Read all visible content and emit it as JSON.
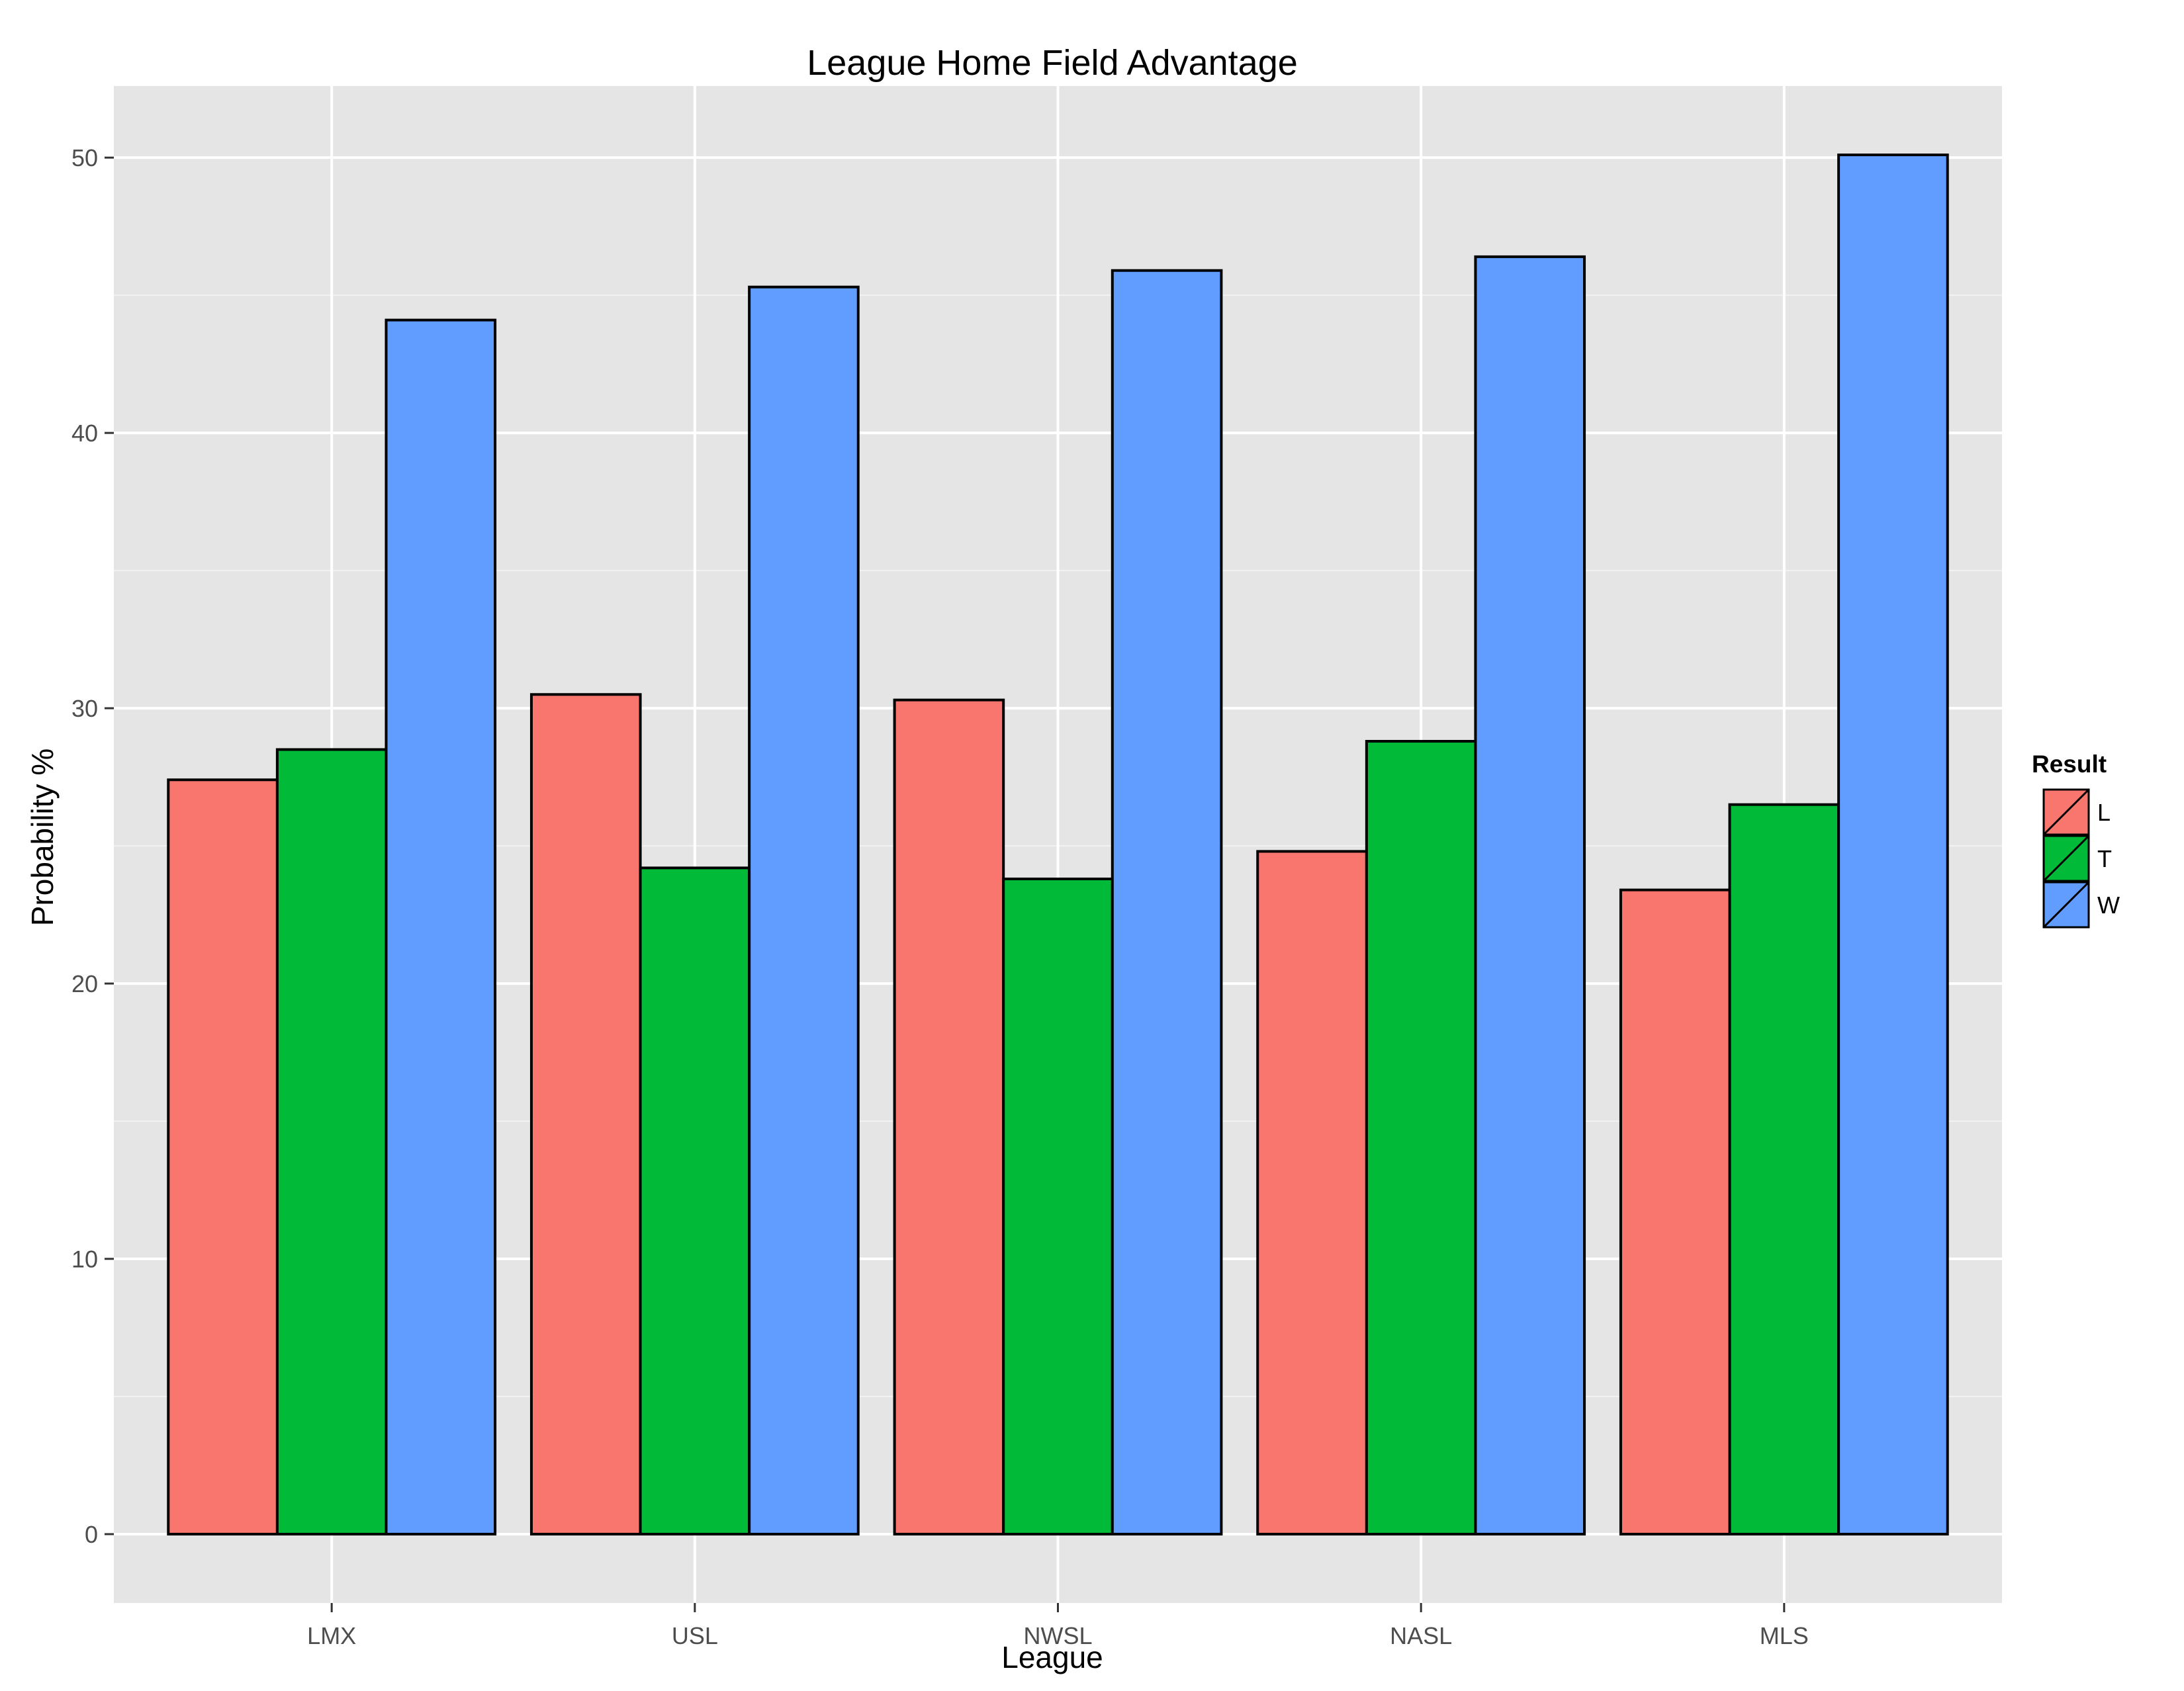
{
  "chart_data": {
    "type": "bar",
    "title": "League Home Field Advantage",
    "xlabel": "League",
    "ylabel": "Probability %",
    "categories": [
      "LMX",
      "USL",
      "NWSL",
      "NASL",
      "MLS"
    ],
    "series": [
      {
        "name": "L",
        "color": "#F8766D",
        "values": [
          27.4,
          30.5,
          30.3,
          24.8,
          23.4
        ]
      },
      {
        "name": "T",
        "color": "#00BA38",
        "values": [
          28.5,
          24.2,
          23.8,
          28.8,
          26.5
        ]
      },
      {
        "name": "W",
        "color": "#619CFF",
        "values": [
          44.1,
          45.3,
          45.9,
          46.4,
          50.1
        ]
      }
    ],
    "ylim": [
      -2.5,
      52.6
    ],
    "yticks": [
      0,
      10,
      20,
      30,
      40,
      50
    ],
    "ytick_labels": [
      "0",
      "10",
      "20",
      "30",
      "40",
      "50"
    ],
    "grid": true,
    "legend": {
      "title": "Result",
      "position": "right"
    },
    "colors": {
      "panel_background": "#E5E5E5",
      "grid_line": "#FFFFFF",
      "bar_outline": "#000000",
      "tick_label": "#4D4D4D",
      "text": "#000000"
    }
  }
}
